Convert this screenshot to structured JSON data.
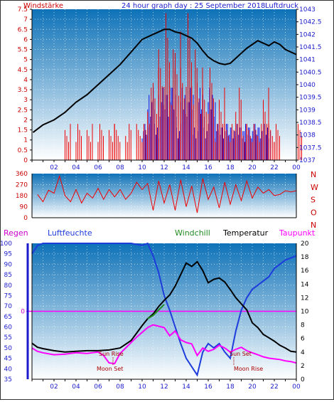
{
  "header": {
    "wind_label": "Windstärke",
    "title": "24 hour graph day : 25 September 2018",
    "pressure_label": "Luftdruck"
  },
  "colors": {
    "bg_top": "#0e72b8",
    "bg_bottom": "#ffffff",
    "axis_red": "#cc0000",
    "axis_blue": "#1a1acc",
    "pressure": "#000000",
    "wind_speed": "#ee0000",
    "wind_gust": "#1010dd",
    "wind_dir": "#ee0000",
    "humidity": "#1e3cdc",
    "temperature": "#000000",
    "dewpoint": "#ff00ff",
    "windchill": "#228b22",
    "rain": "#cc00cc",
    "zero_line": "#ff00ff"
  },
  "x_ticks": [
    "02",
    "04",
    "06",
    "08",
    "10",
    "12",
    "14",
    "16",
    "18",
    "20",
    "22",
    "00"
  ],
  "chart_data": [
    {
      "id": "wind_pressure",
      "type": "line",
      "title": "24 hour graph day : 25 September 2018",
      "left_axis_label": "Windstärke",
      "right_axis_label": "Luftdruck",
      "left_ticks": [
        "7.5",
        "7",
        "6.5",
        "6",
        "5.5",
        "5",
        "4.5",
        "4",
        "3.5",
        "3",
        "2.5",
        "2",
        "1.5",
        "1",
        "0.5",
        "0"
      ],
      "right_ticks": [
        "1043",
        "1042.5",
        "1042",
        "1041.5",
        "1041",
        "1040.5",
        "1040",
        "1039.5",
        "1039",
        "1038.5",
        "1038",
        "1037.5",
        "1037"
      ],
      "left_ylim": [
        0,
        7.5
      ],
      "right_ylim": [
        1037,
        1043
      ],
      "x_range_hours": [
        0,
        24
      ],
      "pressure_series": {
        "x": [
          0.1,
          1,
          2,
          3,
          4,
          5,
          6,
          7,
          8,
          9,
          10,
          11,
          11.5,
          12,
          12.5,
          13,
          13.5,
          14,
          14.5,
          15,
          15.5,
          16,
          16.5,
          17,
          17.5,
          18,
          18.5,
          19,
          19.5,
          20,
          20.5,
          21,
          21.5,
          22,
          22.5,
          23,
          23.5,
          24
        ],
        "y": [
          1038.1,
          1038.4,
          1038.6,
          1038.9,
          1039.3,
          1039.6,
          1040.0,
          1040.4,
          1040.8,
          1041.3,
          1041.8,
          1042.0,
          1042.1,
          1042.2,
          1042.2,
          1042.1,
          1042.05,
          1041.95,
          1041.85,
          1041.65,
          1041.35,
          1041.1,
          1040.95,
          1040.85,
          1040.8,
          1040.85,
          1041.05,
          1041.25,
          1041.45,
          1041.6,
          1041.75,
          1041.65,
          1041.55,
          1041.7,
          1041.6,
          1041.4,
          1041.3,
          1041.2
        ]
      },
      "wind_speed_series": {
        "x": [
          0,
          0.5,
          1,
          1.5,
          2,
          2.5,
          3,
          3.5,
          4,
          4.5,
          5,
          5.5,
          6,
          6.5,
          7,
          7.5,
          8,
          8.5,
          9,
          9.5,
          10,
          10.5,
          11,
          11.5,
          12,
          12.5,
          13,
          13.5,
          14,
          14.5,
          15,
          15.5,
          16,
          16.5,
          17,
          17.5,
          18,
          18.5,
          19,
          19.5,
          20,
          20.5,
          21,
          21.5,
          22,
          22.5,
          23,
          23.5,
          24
        ],
        "y": [
          0,
          0,
          0,
          0,
          0,
          0,
          1.8,
          0,
          1.8,
          0,
          1.8,
          0,
          1.8,
          0,
          1.8,
          1.8,
          0,
          1.8,
          0,
          1.8,
          1.8,
          3.6,
          4.6,
          5.5,
          7.3,
          5.5,
          6.4,
          4.6,
          7.3,
          5.5,
          4.6,
          3.6,
          4.6,
          1.8,
          3.6,
          1.8,
          1.8,
          3.6,
          1.8,
          1.8,
          1.8,
          1.8,
          3.6,
          1.8,
          1.8,
          0,
          0,
          0,
          1.8
        ]
      },
      "wind_gust_series": {
        "x": [
          10,
          10.5,
          11,
          11.5,
          12,
          12.5,
          13,
          13.5,
          14,
          14.5,
          15,
          15.5,
          16,
          16.5,
          17,
          17.5,
          18,
          18.5,
          19,
          19.5,
          20,
          20.5,
          21
        ],
        "y": [
          1.8,
          3.6,
          1.8,
          3.6,
          3.6,
          3.6,
          1.8,
          3.6,
          3.6,
          1.8,
          3.6,
          1.8,
          3.6,
          1.8,
          1.8,
          1.8,
          1.8,
          1.8,
          1.8,
          1.8,
          1.8,
          1.8,
          1.8
        ]
      }
    },
    {
      "id": "wind_direction",
      "type": "line",
      "left_ticks": [
        "360",
        "270",
        "180",
        "90",
        "0"
      ],
      "right_labels": [
        "N",
        "W",
        "S",
        "O",
        "N"
      ],
      "ylim": [
        0,
        360
      ],
      "x_range_hours": [
        0,
        24
      ],
      "direction_series": {
        "x": [
          0.5,
          1,
          1.5,
          2,
          2.5,
          3,
          3.5,
          4,
          4.5,
          5,
          5.5,
          6,
          6.5,
          7,
          7.5,
          8,
          8.5,
          9,
          9.5,
          10,
          10.5,
          11,
          11.5,
          12,
          12.5,
          13,
          13.5,
          14,
          14.5,
          15,
          15.5,
          16,
          16.5,
          17,
          17.5,
          18,
          18.5,
          19,
          19.5,
          20,
          20.5,
          21,
          21.5,
          22,
          22.5,
          23,
          23.5,
          24
        ],
        "y": [
          190,
          130,
          225,
          200,
          340,
          180,
          130,
          230,
          120,
          200,
          160,
          240,
          150,
          230,
          170,
          230,
          150,
          200,
          290,
          230,
          280,
          60,
          300,
          120,
          270,
          60,
          310,
          90,
          260,
          40,
          320,
          150,
          250,
          80,
          290,
          110,
          270,
          140,
          300,
          160,
          250,
          200,
          230,
          180,
          190,
          220,
          210,
          220
        ]
      }
    },
    {
      "id": "temp_humidity",
      "type": "line",
      "legend": [
        "Regen",
        "Luftfeuchte",
        "Windchill",
        "Temperatur",
        "Taupunkt"
      ],
      "left_ticks": [
        "100",
        "95",
        "90",
        "85",
        "80",
        "75",
        "70",
        "65",
        "60",
        "55",
        "50",
        "45",
        "40",
        "35"
      ],
      "right_ticks": [
        "20",
        "18",
        "16",
        "14",
        "12",
        "10",
        "8",
        "6",
        "4",
        "2",
        "0"
      ],
      "rain_zero_label": "0",
      "left_ylim": [
        35,
        100
      ],
      "right_ylim": [
        0,
        20
      ],
      "x_range_hours": [
        0,
        24
      ],
      "humidity_series": {
        "x": [
          0,
          0.5,
          1,
          2,
          3,
          4,
          5,
          6,
          7,
          8,
          9,
          10,
          10.5,
          11,
          11.5,
          12,
          12.5,
          13,
          13.5,
          14,
          14.5,
          15,
          15.5,
          16,
          16.5,
          17,
          17.5,
          18,
          18.5,
          19,
          19.5,
          20,
          20.5,
          21,
          21.5,
          22,
          22.5,
          23,
          23.5,
          24
        ],
        "y": [
          95,
          99,
          100,
          100,
          100,
          100,
          100,
          100,
          100,
          100,
          100,
          99,
          100,
          94,
          86,
          75,
          68,
          60,
          52,
          45,
          41,
          37,
          48,
          52,
          50,
          52,
          48,
          45,
          58,
          68,
          74,
          78,
          80,
          82,
          84,
          88,
          90,
          92,
          93,
          94
        ]
      },
      "temperature_series": {
        "x": [
          0,
          0.5,
          1,
          2,
          3,
          4,
          5,
          6,
          7,
          8,
          9,
          9.5,
          10,
          10.5,
          11,
          11.5,
          12,
          12.5,
          13,
          13.5,
          14,
          14.5,
          15,
          15.5,
          16,
          16.5,
          17,
          17.5,
          18,
          18.5,
          19,
          19.5,
          20,
          20.5,
          21,
          21.5,
          22,
          22.5,
          23,
          23.5,
          24
        ],
        "y": [
          5.3,
          4.7,
          4.5,
          4.2,
          4.0,
          4.1,
          4.2,
          4.2,
          4.3,
          4.6,
          5.7,
          6.8,
          7.9,
          8.9,
          9.6,
          10.7,
          11.6,
          12.4,
          13.7,
          15.4,
          17.1,
          16.6,
          17.3,
          16.0,
          14.2,
          14.7,
          14.9,
          14.3,
          13.2,
          12.0,
          11.1,
          10.2,
          8.3,
          7.6,
          6.6,
          6.1,
          5.6,
          5.0,
          4.6,
          4.1,
          4.0
        ]
      },
      "dewpoint_series": {
        "x": [
          0,
          0.5,
          1,
          2,
          3,
          4,
          5,
          6,
          6.5,
          7,
          7.5,
          8,
          8.5,
          9,
          9.5,
          10,
          10.5,
          11,
          11.5,
          12,
          12.5,
          13,
          13.5,
          14,
          14.5,
          15,
          15.5,
          16,
          16.5,
          17,
          17.5,
          18,
          18.5,
          19,
          19.5,
          20,
          20.5,
          21,
          21.5,
          22,
          22.5,
          23,
          23.5,
          24
        ],
        "y": [
          4.6,
          4.1,
          3.9,
          3.6,
          3.7,
          3.9,
          3.8,
          4.0,
          3.5,
          2.4,
          2.3,
          3.8,
          4.6,
          5.4,
          6.2,
          6.9,
          7.6,
          8.0,
          7.8,
          7.6,
          6.4,
          7.1,
          5.8,
          5.4,
          5.2,
          3.5,
          4.6,
          4.1,
          4.4,
          5.0,
          4.6,
          4.0,
          4.4,
          4.7,
          4.2,
          3.9,
          3.6,
          3.3,
          3.1,
          3.0,
          2.9,
          2.7,
          2.6,
          2.4
        ]
      },
      "windchill_series": {
        "x": [
          10.5,
          11,
          11.5,
          12
        ],
        "y": [
          8.9,
          9.4,
          10.2,
          11.0
        ]
      },
      "annotations": {
        "sun_rise": "Sun Rise",
        "moon_set": "Moon Set",
        "sun_set": "Sun Set",
        "moon_rise": "Moon Rise"
      }
    }
  ]
}
